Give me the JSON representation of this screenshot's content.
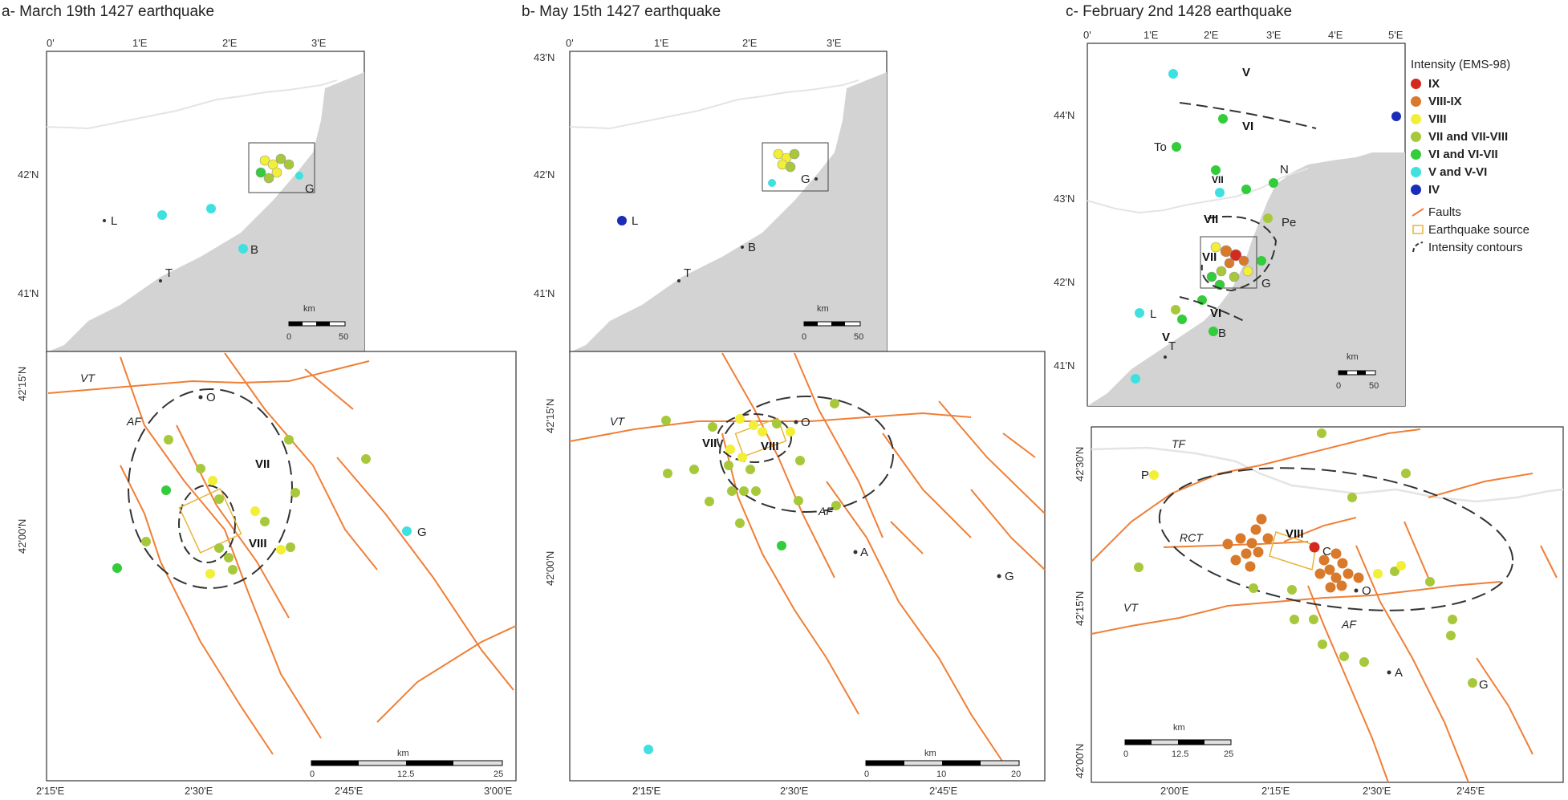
{
  "titles": {
    "a": "a- March 19th 1427 earthquake",
    "b": "b- May 15th 1427 earthquake",
    "c": "c- February 2nd 1428 earthquake"
  },
  "ticks": {
    "lon_a": [
      "0'",
      "1'E",
      "2'E",
      "3'E"
    ],
    "lon_b": [
      "0'",
      "1'E",
      "2'E",
      "3'E"
    ],
    "lat_a": [
      "42'N",
      "41'N"
    ],
    "lat_b": [
      "43'N",
      "42'N",
      "41'N"
    ],
    "lon_c": [
      "0'",
      "1'E",
      "2'E",
      "3'E",
      "4'E",
      "5'E"
    ],
    "lat_c": [
      "44'N",
      "43'N",
      "42'N",
      "41'N"
    ],
    "zoom_lat_a": [
      "42'15'N",
      "42'00'N"
    ],
    "zoom_lon_a": [
      "2'15'E",
      "2'30'E",
      "2'45'E",
      "3'00'E"
    ],
    "zoom_lat_b": [
      "42'15'N",
      "42'00'N"
    ],
    "zoom_lon_b": [
      "2'15'E",
      "2'30'E",
      "2'45'E"
    ],
    "zoom_lat_c": [
      "42'30'N",
      "42'15'N",
      "42'00'N"
    ],
    "zoom_lon_c": [
      "2'00'E",
      "2'15'E",
      "2'30'E",
      "2'45'E"
    ]
  },
  "places": {
    "L": "L",
    "T": "T",
    "B": "B",
    "G": "G",
    "To": "To",
    "N": "N",
    "Pe": "Pe",
    "O": "O",
    "A": "A",
    "C": "C",
    "P": "P"
  },
  "faults": {
    "VT": "VT",
    "AF": "AF",
    "RCT": "RCT",
    "TF": "TF"
  },
  "intensity_labels": {
    "V": "V",
    "VI": "VI",
    "VII": "VII",
    "VIII": "VIII"
  },
  "scalebars": {
    "unit": "km",
    "a_top": [
      "0",
      "50"
    ],
    "b_top": [
      "0",
      "50"
    ],
    "c_top": [
      "0",
      "50"
    ],
    "a_zoom": [
      "0",
      "12.5",
      "25"
    ],
    "b_zoom": [
      "0",
      "10",
      "20"
    ],
    "c_zoom": [
      "0",
      "12.5",
      "25"
    ]
  },
  "legend": {
    "title": "Intensity (EMS-98)",
    "classes": [
      {
        "label": "IX",
        "color": "#d42a1e"
      },
      {
        "label": "VIII-IX",
        "color": "#d9792b"
      },
      {
        "label": "VIII",
        "color": "#f2ef36"
      },
      {
        "label": "VII and VII-VIII",
        "color": "#a8c83c"
      },
      {
        "label": "VI and VI-VII",
        "color": "#33cc3a"
      },
      {
        "label": "V and V-VI",
        "color": "#3fe0e0"
      },
      {
        "label": "IV",
        "color": "#1a2db8"
      }
    ],
    "faults": "Faults",
    "source": "Earthquake source",
    "contours": "Intensity contours"
  },
  "colors": {
    "land_gray": "#d3d3d3",
    "border": "#dddddd",
    "fault": "#f07f36",
    "contour": "#333333",
    "source_box": "#e8b43c"
  }
}
